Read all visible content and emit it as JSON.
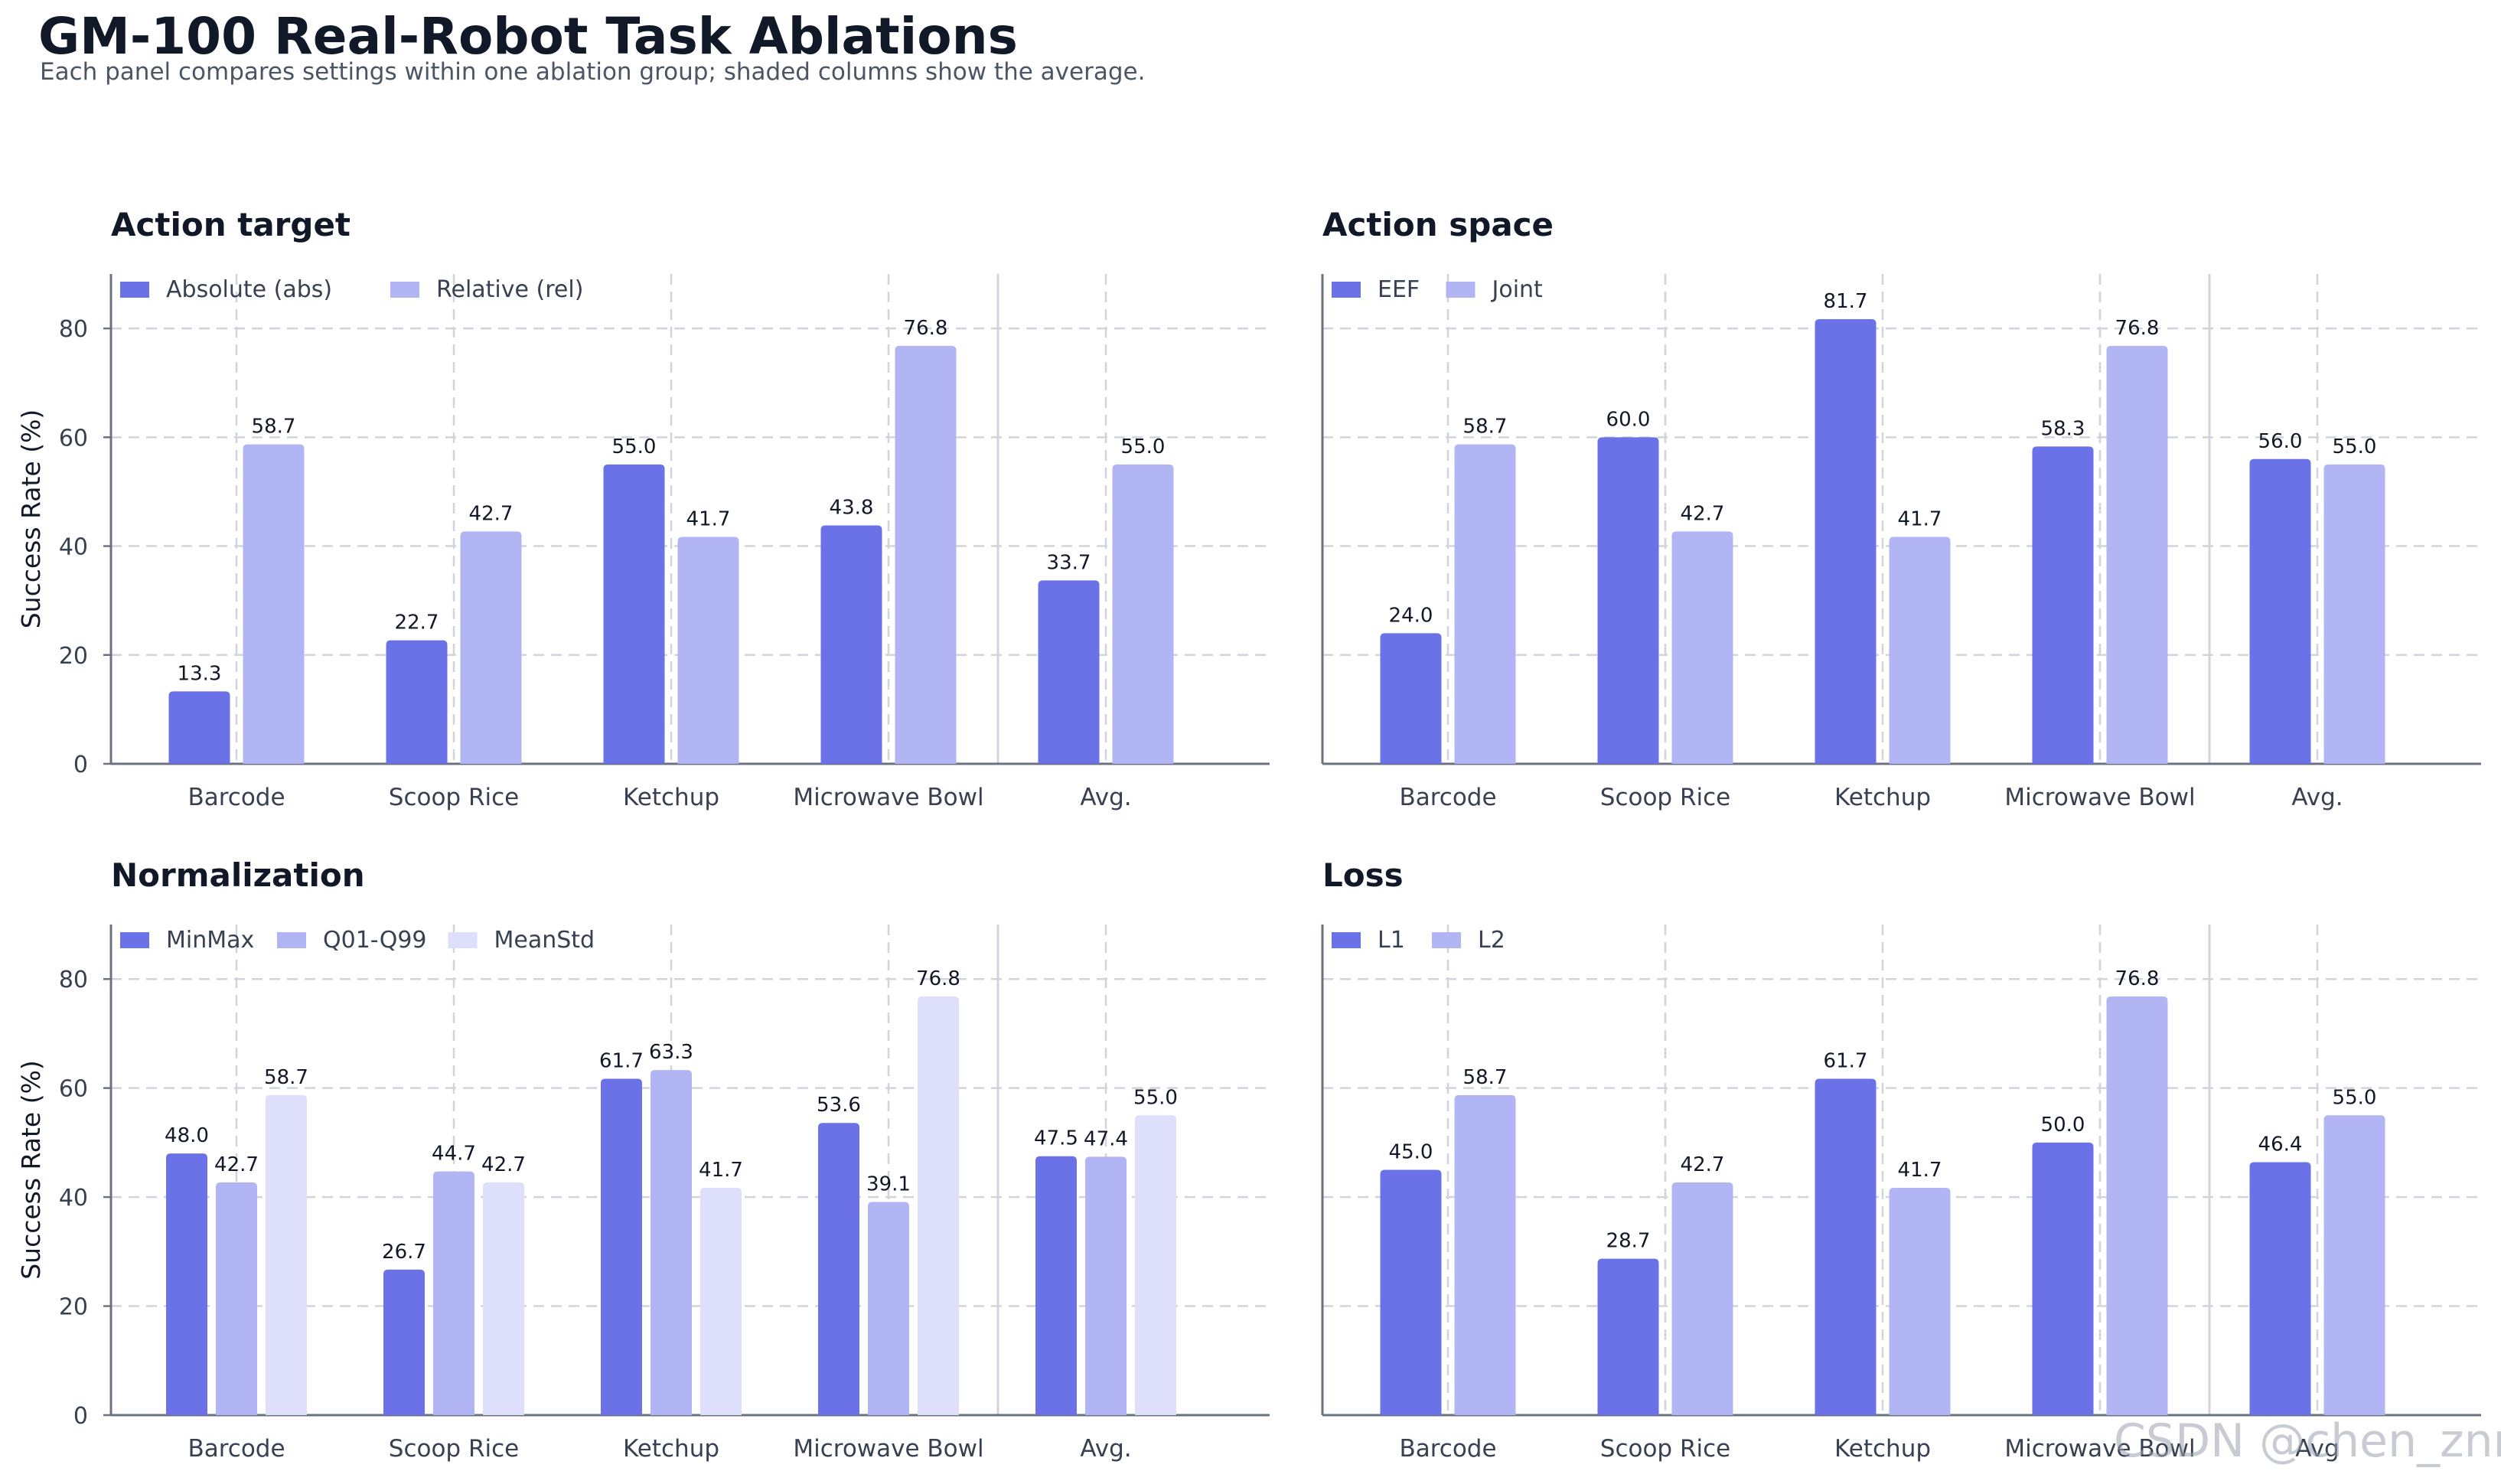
{
  "title": "GM-100 Real-Robot Task Ablations",
  "subtitle": "Each panel compares settings within one ablation group; shaded columns show the average.",
  "watermark": "CSDN @chen_znn",
  "colors": {
    "series_1": "#6b72e8",
    "series_2": "#b1b5f4",
    "series_3": "#dedffa",
    "grid": "#d1d5db",
    "axis": "#6b7280",
    "separator": "#d1d5db"
  },
  "chart_data": [
    {
      "type": "bar",
      "title": "Action target",
      "ylabel": "Success Rate (%)",
      "ylim": [
        0,
        90
      ],
      "yticks": [
        0,
        20,
        40,
        60,
        80
      ],
      "grid": true,
      "legend_position": "top-left",
      "categories": [
        "Barcode",
        "Scoop Rice",
        "Ketchup",
        "Microwave Bowl",
        "Avg."
      ],
      "series": [
        {
          "name": "Absolute (abs)",
          "values": [
            13.3,
            22.7,
            55.0,
            43.8,
            33.7
          ]
        },
        {
          "name": "Relative (rel)",
          "values": [
            58.7,
            42.7,
            41.7,
            76.8,
            55.0
          ]
        }
      ]
    },
    {
      "type": "bar",
      "title": "Action space",
      "ylabel": "",
      "ylim": [
        0,
        90
      ],
      "yticks": [],
      "grid": true,
      "legend_position": "top-left",
      "categories": [
        "Barcode",
        "Scoop Rice",
        "Ketchup",
        "Microwave Bowl",
        "Avg."
      ],
      "series": [
        {
          "name": "EEF",
          "values": [
            24.0,
            60.0,
            81.7,
            58.3,
            56.0
          ]
        },
        {
          "name": "Joint",
          "values": [
            58.7,
            42.7,
            41.7,
            76.8,
            55.0
          ]
        }
      ]
    },
    {
      "type": "bar",
      "title": "Normalization",
      "ylabel": "Success Rate (%)",
      "ylim": [
        0,
        90
      ],
      "yticks": [
        0,
        20,
        40,
        60,
        80
      ],
      "grid": true,
      "legend_position": "top-left",
      "categories": [
        "Barcode",
        "Scoop Rice",
        "Ketchup",
        "Microwave Bowl",
        "Avg."
      ],
      "series": [
        {
          "name": "MinMax",
          "values": [
            48.0,
            26.7,
            61.7,
            53.6,
            47.5
          ]
        },
        {
          "name": "Q01-Q99",
          "values": [
            42.7,
            44.7,
            63.3,
            39.1,
            47.4
          ]
        },
        {
          "name": "MeanStd",
          "values": [
            58.7,
            42.7,
            41.7,
            76.8,
            55.0
          ]
        }
      ]
    },
    {
      "type": "bar",
      "title": "Loss",
      "ylabel": "",
      "ylim": [
        0,
        90
      ],
      "yticks": [],
      "grid": true,
      "legend_position": "top-left",
      "categories": [
        "Barcode",
        "Scoop Rice",
        "Ketchup",
        "Microwave Bowl",
        "Avg"
      ],
      "series": [
        {
          "name": "L1",
          "values": [
            45.0,
            28.7,
            61.7,
            50.0,
            46.4
          ]
        },
        {
          "name": "L2",
          "values": [
            58.7,
            42.7,
            41.7,
            76.8,
            55.0
          ]
        }
      ]
    }
  ]
}
